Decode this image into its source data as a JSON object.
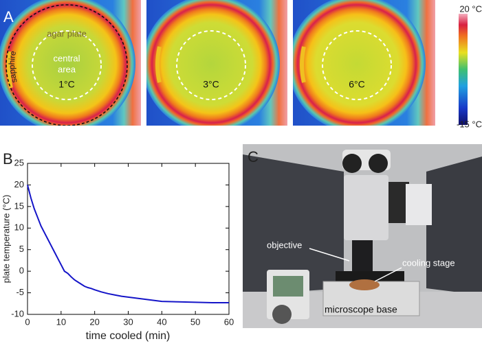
{
  "panel_a": {
    "label": "A",
    "sapphire": "sapphire",
    "agar_plate": "agar plate",
    "central_area": [
      "central",
      "area"
    ],
    "temperatures": [
      "1°C",
      "3°C",
      "6°C"
    ],
    "colorbar": {
      "max_label": "20 °C",
      "min_label": "-15 °C"
    }
  },
  "panel_b": {
    "label": "B"
  },
  "chart_data": {
    "type": "line",
    "xlabel": "time cooled (min)",
    "ylabel": "plate temperature (°C)",
    "color": "#1414c8",
    "x": [
      0,
      1,
      2,
      3,
      4,
      5,
      6,
      7,
      8,
      9,
      10,
      11,
      12,
      13,
      14,
      15,
      16,
      17,
      18,
      19,
      20,
      22,
      24,
      26,
      28,
      30,
      32,
      34,
      36,
      38,
      40,
      45,
      50,
      55,
      60
    ],
    "values": [
      20,
      17,
      14.5,
      12.5,
      10.5,
      9,
      7.5,
      6,
      4.5,
      3,
      1.5,
      0,
      -0.5,
      -1.3,
      -2,
      -2.5,
      -3,
      -3.5,
      -3.8,
      -4,
      -4.3,
      -4.8,
      -5.2,
      -5.5,
      -5.8,
      -6,
      -6.2,
      -6.4,
      -6.6,
      -6.8,
      -7,
      -7.1,
      -7.2,
      -7.3,
      -7.3
    ],
    "xlim": [
      0,
      60
    ],
    "xticks": [
      0,
      10,
      20,
      30,
      40,
      50,
      60
    ],
    "ylim": [
      -10,
      25
    ],
    "yticks": [
      -10,
      -5,
      0,
      5,
      10,
      15,
      20,
      25
    ]
  },
  "panel_c": {
    "label": "C",
    "objective": "objective",
    "cooling_stage": "cooling stage",
    "microscope_base": "microscope base"
  }
}
